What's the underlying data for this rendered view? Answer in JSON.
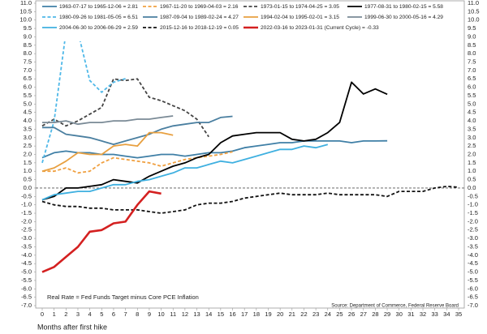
{
  "chart_data": {
    "type": "line",
    "x_label": "Months after first hike",
    "note": "Real Rate = Fed Funds Target minus Core PCE Inflation",
    "source": "Source: Department of Commerce, Federal Reserve Board",
    "x": [
      0,
      1,
      2,
      3,
      4,
      5,
      6,
      7,
      8,
      9,
      10,
      11,
      12,
      13,
      14,
      15,
      16,
      17,
      18,
      19,
      20,
      21,
      22,
      23,
      24,
      25,
      26,
      27,
      28,
      29,
      30,
      31,
      32,
      33,
      34,
      35
    ],
    "xlim": [
      0,
      35
    ],
    "xticks": [
      0,
      1,
      2,
      3,
      4,
      5,
      6,
      7,
      8,
      9,
      10,
      11,
      12,
      13,
      14,
      15,
      16,
      17,
      18,
      19,
      20,
      21,
      22,
      23,
      24,
      25,
      26,
      27,
      28,
      29,
      30,
      31,
      32,
      33,
      34,
      35
    ],
    "ylim": [
      -7,
      11
    ],
    "yticks": [
      {
        "value": -7,
        "label": "-7.0"
      },
      -6.5,
      {
        "value": -6,
        "label": "-6.0"
      },
      -5.5,
      {
        "value": -5,
        "label": "-5.0"
      },
      -4.5,
      {
        "value": -4,
        "label": "-4.0"
      },
      -3.5,
      {
        "value": -3,
        "label": "-3.0"
      },
      -2.5,
      {
        "value": -2,
        "label": "-2.0"
      },
      -1.5,
      {
        "value": -1,
        "label": "-1.0"
      },
      -0.5,
      {
        "value": 0,
        "label": "0.0"
      },
      0.5,
      {
        "value": 1,
        "label": "1.0"
      },
      1.5,
      {
        "value": 2,
        "label": "2.0"
      },
      2.5,
      {
        "value": 3,
        "label": "3.0"
      },
      3.5,
      {
        "value": 4,
        "label": "4.0"
      },
      4.5,
      {
        "value": 5,
        "label": "5.0"
      },
      5.5,
      {
        "value": 6,
        "label": "6.0"
      },
      6.5,
      {
        "value": 7,
        "label": "7.0"
      },
      7.5,
      {
        "value": 8,
        "label": "8.0"
      },
      8.5,
      {
        "value": 9,
        "label": "9.0"
      },
      9.5,
      {
        "value": 10,
        "label": "10.0"
      },
      10.5,
      {
        "value": 11,
        "label": "11.0"
      }
    ],
    "reference_line": 0,
    "grid": false,
    "legend": "top",
    "series": [
      {
        "name": "1963-07-17 to 1965-12-06 = 2.81",
        "color": "#3f7fa6",
        "dash": false,
        "values": [
          1.8,
          2.1,
          2.2,
          2.1,
          2.1,
          2.0,
          2.0,
          1.9,
          1.8,
          1.9,
          2.0,
          2.0,
          1.9,
          2.0,
          2.1,
          2.1,
          2.2,
          2.4,
          2.5,
          2.6,
          2.7,
          2.7,
          2.8,
          2.8,
          2.8,
          2.8,
          2.7,
          2.8,
          2.8,
          2.81,
          null,
          null,
          null,
          null,
          null,
          null
        ]
      },
      {
        "name": "1967-11-20 to 1969-04-03 = 2.16",
        "color": "#f0a040",
        "dash": true,
        "values": [
          1.0,
          1.0,
          1.2,
          0.9,
          1.0,
          1.5,
          1.8,
          1.7,
          1.6,
          1.5,
          1.3,
          1.5,
          1.7,
          1.8,
          1.9,
          2.0,
          2.16,
          null,
          null,
          null,
          null,
          null,
          null,
          null,
          null,
          null,
          null,
          null,
          null,
          null,
          null,
          null,
          null,
          null,
          null,
          null
        ]
      },
      {
        "name": "1973-01-15 to 1974-04-25 = 3.05",
        "color": "#444444",
        "dash": true,
        "values": [
          3.7,
          4.1,
          3.7,
          4.0,
          4.4,
          4.8,
          6.5,
          6.4,
          6.5,
          5.4,
          5.2,
          4.9,
          4.6,
          4.1,
          3.05,
          null,
          null,
          null,
          null,
          null,
          null,
          null,
          null,
          null,
          null,
          null,
          null,
          null,
          null,
          null,
          null,
          null,
          null,
          null,
          null,
          null
        ]
      },
      {
        "name": "1977-08-31 to 1980-02-15 = 5.58",
        "color": "#000000",
        "dash": false,
        "values": [
          -0.7,
          -0.5,
          0.0,
          0.0,
          0.1,
          0.2,
          0.5,
          0.4,
          0.3,
          0.7,
          1.0,
          1.3,
          1.5,
          1.8,
          2.0,
          2.7,
          3.1,
          3.2,
          3.3,
          3.3,
          3.3,
          2.9,
          2.8,
          2.9,
          3.3,
          3.9,
          6.3,
          5.6,
          5.9,
          5.58,
          null,
          null,
          null,
          null,
          null,
          null
        ]
      },
      {
        "name": "1980-09-26 to 1981-05-05 = 6.51",
        "color": "#4fb8e8",
        "dash": true,
        "values": [
          1.5,
          4.0,
          9.3,
          9.3,
          6.4,
          5.7,
          6.3,
          6.51,
          null,
          null,
          null,
          null,
          null,
          null,
          null,
          null,
          null,
          null,
          null,
          null,
          null,
          null,
          null,
          null,
          null,
          null,
          null,
          null,
          null,
          null,
          null,
          null,
          null,
          null,
          null,
          null
        ]
      },
      {
        "name": "1987-09-04 to 1989-02-24 = 4.27",
        "color": "#4a7fa0",
        "dash": false,
        "values": [
          3.6,
          3.6,
          3.2,
          3.1,
          3.0,
          2.8,
          2.6,
          2.8,
          3.0,
          3.2,
          3.5,
          3.7,
          3.8,
          3.9,
          3.9,
          4.2,
          4.27,
          null,
          null,
          null,
          null,
          null,
          null,
          null,
          null,
          null,
          null,
          null,
          null,
          null,
          null,
          null,
          null,
          null,
          null,
          null
        ]
      },
      {
        "name": "1994-02-04 to 1995-02-01 = 3.15",
        "color": "#e8a040",
        "dash": false,
        "values": [
          1.0,
          1.2,
          1.6,
          2.1,
          2.0,
          2.0,
          2.5,
          2.6,
          2.5,
          3.3,
          3.3,
          3.15,
          null,
          null,
          null,
          null,
          null,
          null,
          null,
          null,
          null,
          null,
          null,
          null,
          null,
          null,
          null,
          null,
          null,
          null,
          null,
          null,
          null,
          null,
          null,
          null
        ]
      },
      {
        "name": "1999-06-30 to 2000-05-16 = 4.29",
        "color": "#7a8a96",
        "dash": false,
        "values": [
          3.9,
          3.9,
          4.0,
          3.8,
          3.9,
          3.9,
          4.0,
          4.0,
          4.1,
          4.1,
          4.2,
          4.29,
          null,
          null,
          null,
          null,
          null,
          null,
          null,
          null,
          null,
          null,
          null,
          null,
          null,
          null,
          null,
          null,
          null,
          null,
          null,
          null,
          null,
          null,
          null,
          null
        ]
      },
      {
        "name": "2004-06-30 to 2006-06-29 = 2.59",
        "color": "#3fb0e0",
        "dash": false,
        "values": [
          -0.7,
          -0.4,
          -0.3,
          -0.2,
          -0.2,
          0.0,
          0.2,
          0.2,
          0.4,
          0.5,
          0.7,
          0.9,
          1.2,
          1.2,
          1.4,
          1.6,
          1.5,
          1.7,
          1.9,
          2.1,
          2.3,
          2.3,
          2.5,
          2.4,
          2.59,
          null,
          null,
          null,
          null,
          null,
          null,
          null,
          null,
          null,
          null,
          null
        ]
      },
      {
        "name": "2015-12-16 to 2018-12-19 = 0.05",
        "color": "#111111",
        "dash": true,
        "values": [
          -0.8,
          -1.0,
          -1.1,
          -1.1,
          -1.2,
          -1.2,
          -1.3,
          -1.3,
          -1.3,
          -1.4,
          -1.5,
          -1.4,
          -1.3,
          -1.0,
          -0.9,
          -0.9,
          -0.8,
          -0.6,
          -0.5,
          -0.4,
          -0.3,
          -0.4,
          -0.4,
          -0.4,
          -0.3,
          -0.4,
          -0.4,
          -0.4,
          -0.4,
          -0.5,
          -0.2,
          -0.2,
          -0.2,
          0.0,
          0.1,
          0.05
        ]
      },
      {
        "name": "2022-03-16 to 2023-01-31 (Current Cycle) = -0.33",
        "color": "#d42020",
        "dash": false,
        "bold": true,
        "values": [
          -5.0,
          -4.7,
          -4.1,
          -3.5,
          -2.6,
          -2.5,
          -2.1,
          -2.0,
          -1.0,
          -0.2,
          -0.33,
          null,
          null,
          null,
          null,
          null,
          null,
          null,
          null,
          null,
          null,
          null,
          null,
          null,
          null,
          null,
          null,
          null,
          null,
          null,
          null,
          null,
          null,
          null,
          null,
          null
        ]
      }
    ]
  }
}
